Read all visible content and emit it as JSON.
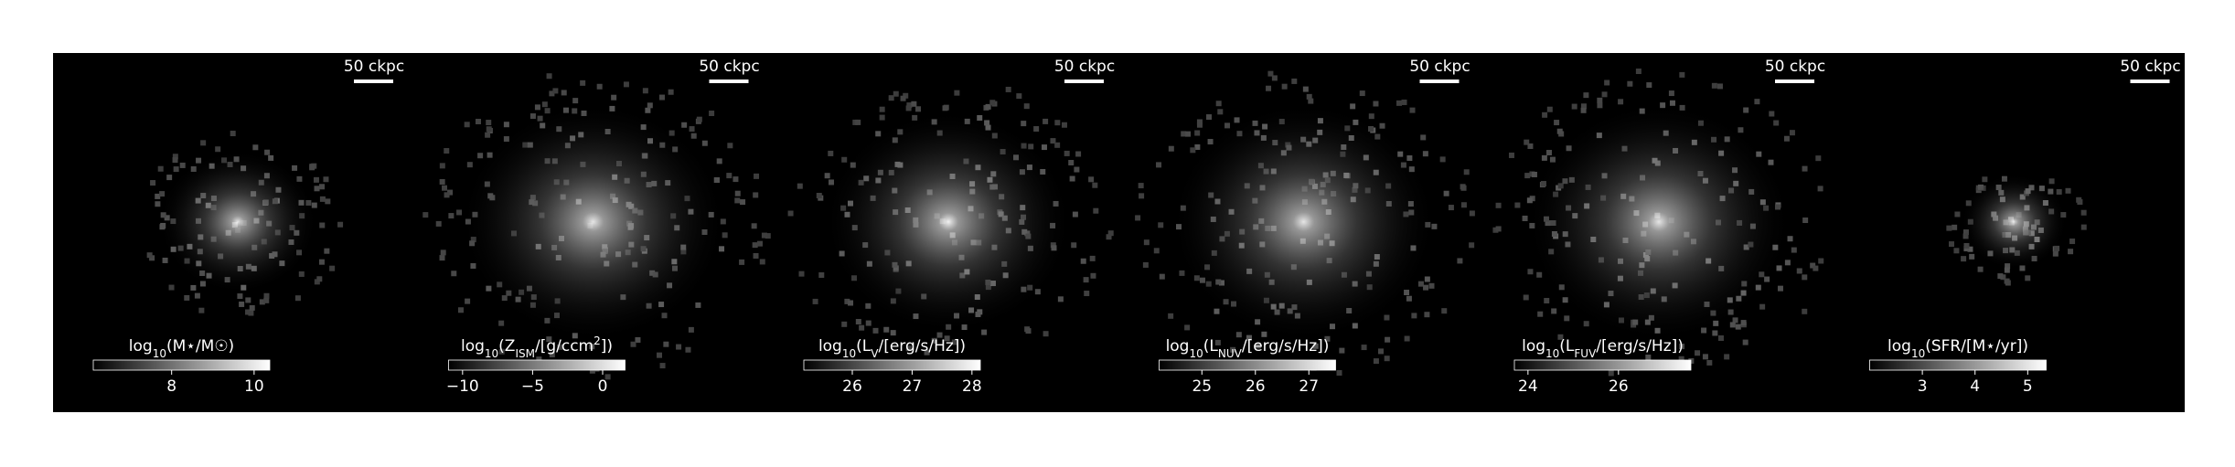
{
  "chart_data": {
    "type": "image_grid",
    "scalebar": "50 ckpc",
    "panels": [
      {
        "label": [
          {
            "text": "log"
          },
          {
            "text": "10",
            "sub": true
          },
          {
            "text": "(M⋆/M☉)"
          }
        ],
        "clim": [
          6.1,
          10.38
        ],
        "ticks": [
          8,
          10
        ],
        "spread": 0.45,
        "peak": 0.9
      },
      {
        "label": [
          {
            "text": "log"
          },
          {
            "text": "10",
            "sub": true
          },
          {
            "text": "(Z"
          },
          {
            "text": "ISM",
            "sub": true
          },
          {
            "text": "/[g/ccm"
          },
          {
            "text": "2",
            "sup": true
          },
          {
            "text": "])"
          }
        ],
        "clim": [
          -11.0,
          1.6
        ],
        "ticks": [
          {
            "value": -10,
            "label": "−10"
          },
          {
            "value": -5,
            "label": "−5"
          },
          0
        ],
        "spread": 0.75,
        "peak": 0.9
      },
      {
        "label": [
          {
            "text": "log"
          },
          {
            "text": "10",
            "sub": true
          },
          {
            "text": "(L"
          },
          {
            "text": "V",
            "sub": true
          },
          {
            "text": "/[erg/s/Hz])"
          }
        ],
        "clim": [
          25.19,
          28.14
        ],
        "ticks": [
          26,
          27,
          28
        ],
        "spread": 0.7,
        "peak": 0.95
      },
      {
        "label": [
          {
            "text": "log"
          },
          {
            "text": "10",
            "sub": true
          },
          {
            "text": "(L"
          },
          {
            "text": "NUV",
            "sub": true
          },
          {
            "text": "/[erg/s/Hz])"
          }
        ],
        "clim": [
          24.2,
          27.5
        ],
        "ticks": [
          25,
          26,
          27
        ],
        "spread": 0.75,
        "peak": 0.9
      },
      {
        "label": [
          {
            "text": "log"
          },
          {
            "text": "10",
            "sub": true
          },
          {
            "text": "(L"
          },
          {
            "text": "FUV",
            "sub": true
          },
          {
            "text": "/[erg/s/Hz])"
          }
        ],
        "clim": [
          23.7,
          27.6
        ],
        "ticks": [
          24,
          26
        ],
        "spread": 0.75,
        "peak": 0.9
      },
      {
        "label": [
          {
            "text": "log"
          },
          {
            "text": "10",
            "sub": true
          },
          {
            "text": "(SFR/[M⋆/yr])"
          }
        ],
        "clim": [
          2.0,
          5.35
        ],
        "ticks": [
          3,
          4,
          5
        ],
        "spread": 0.3,
        "peak": 0.85
      }
    ]
  }
}
